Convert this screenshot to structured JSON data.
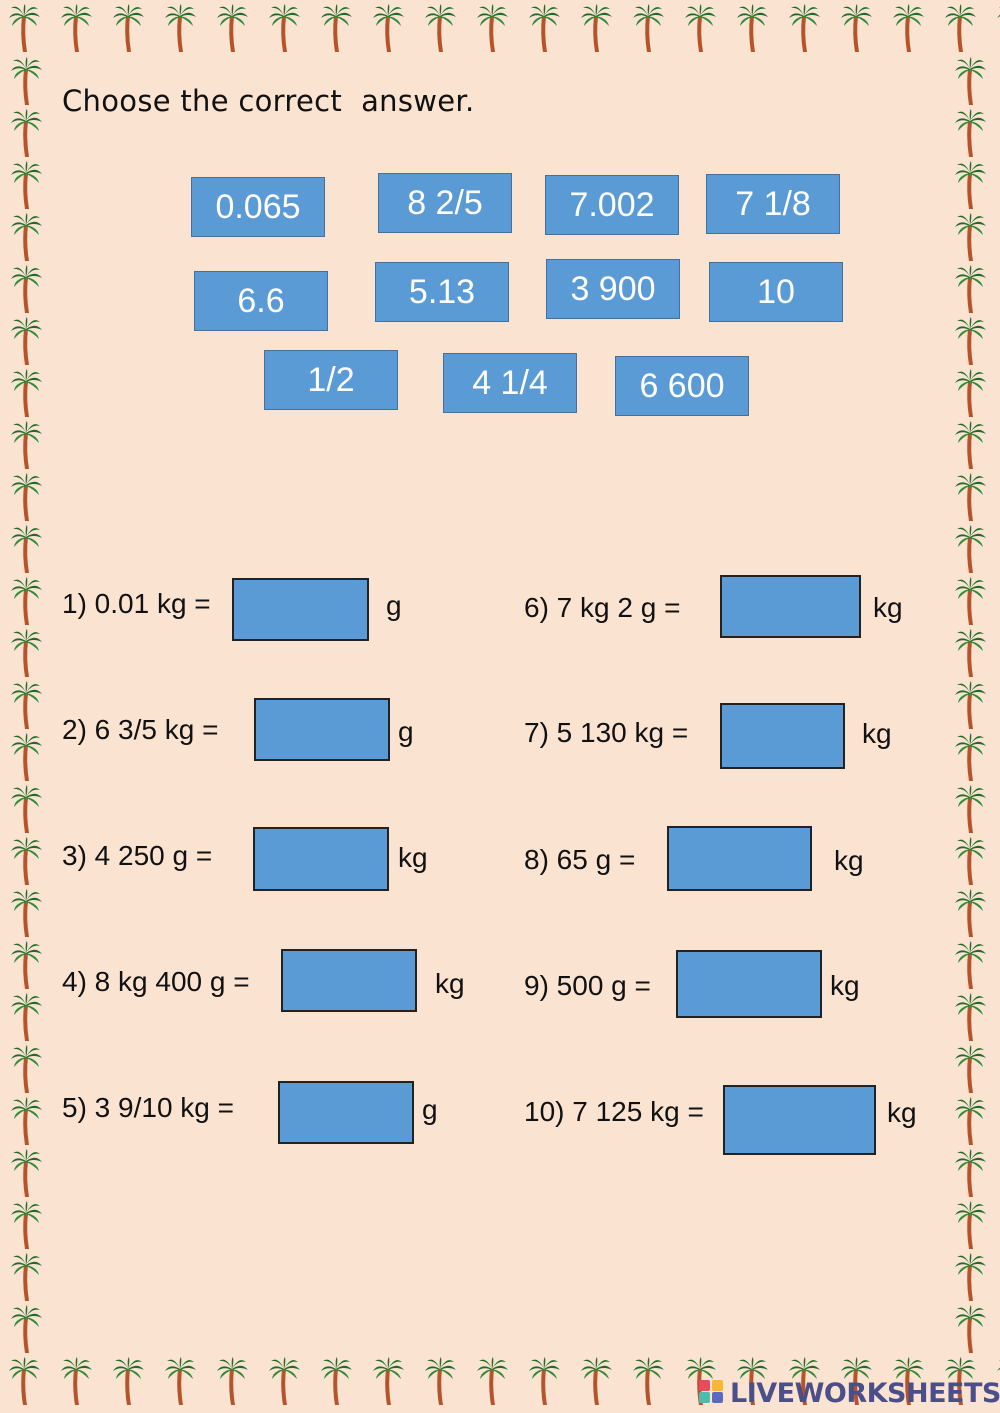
{
  "instruction": "Choose the correct  answer.",
  "tiles": [
    "0.065",
    "8 2/5",
    "7.002",
    "7 1/8",
    "6.6",
    "5.13",
    "3 900",
    "10",
    "1/2",
    "4 1/4",
    "6 600"
  ],
  "questions": [
    {
      "prompt": "1) 0.01 kg =",
      "unit": "g"
    },
    {
      "prompt": "2) 6 3/5 kg =",
      "unit": "g"
    },
    {
      "prompt": "3) 4 250 g =",
      "unit": "kg"
    },
    {
      "prompt": "4) 8 kg 400 g =",
      "unit": "kg"
    },
    {
      "prompt": "5) 3 9/10 kg =",
      "unit": "g"
    },
    {
      "prompt": "6) 7 kg 2 g =",
      "unit": "kg"
    },
    {
      "prompt": "7) 5 130 kg =",
      "unit": "kg"
    },
    {
      "prompt": "8) 65 g =",
      "unit": "kg"
    },
    {
      "prompt": "9) 500 g =",
      "unit": "kg"
    },
    {
      "prompt": "10) 7 125 kg =",
      "unit": "kg"
    }
  ],
  "brand": "LIVEWORKSHEETS",
  "colors": {
    "background": "#fbe3d2",
    "tile": "#5b9bd5",
    "trunk": "#b5532b",
    "leaf": "#1f6b2a"
  },
  "icons": {
    "border": "palm-tree-icon",
    "brand": "liveworksheets-logo-icon"
  }
}
